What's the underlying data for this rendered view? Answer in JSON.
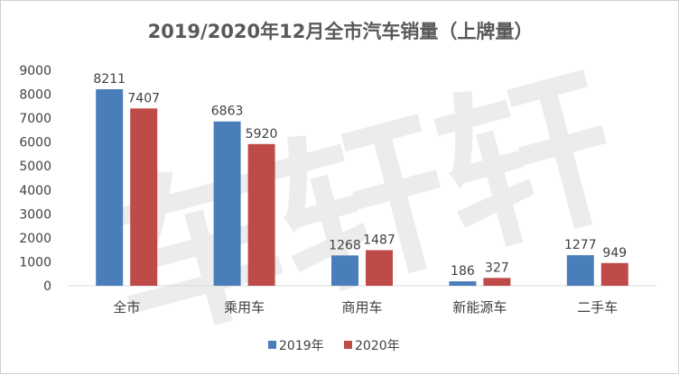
{
  "watermark": "车轩轩",
  "chart_data": {
    "type": "bar",
    "title": "2019/2020年12月全市汽车销量（上牌量）",
    "categories": [
      "全市",
      "乘用车",
      "商用车",
      "新能源车",
      "二手车"
    ],
    "series": [
      {
        "name": "2019年",
        "color": "#4a7ebb",
        "values": [
          8211,
          6863,
          1268,
          186,
          1277
        ]
      },
      {
        "name": "2020年",
        "color": "#be4b48",
        "values": [
          7407,
          5920,
          1487,
          327,
          949
        ]
      }
    ],
    "ylim": [
      0,
      9000
    ],
    "yticks": [
      0,
      1000,
      2000,
      3000,
      4000,
      5000,
      6000,
      7000,
      8000,
      9000
    ],
    "grid": false,
    "legend_position": "bottom"
  }
}
